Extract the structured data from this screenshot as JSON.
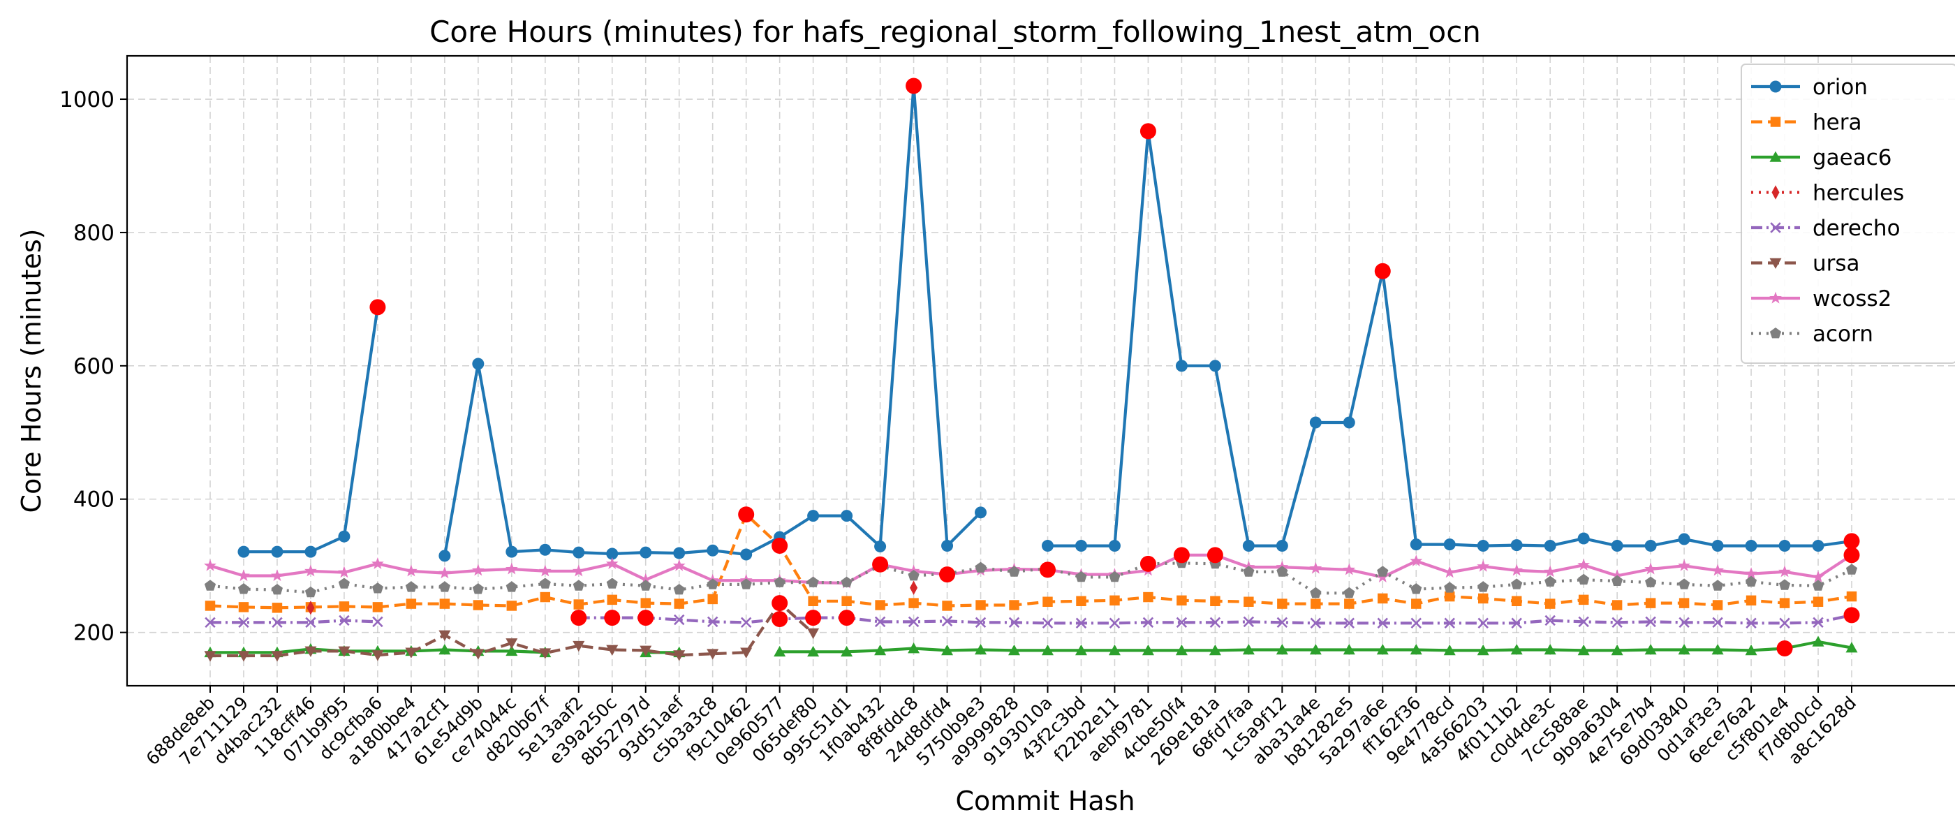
{
  "chart_data": {
    "type": "line",
    "title": "Core Hours (minutes) for hafs_regional_storm_following_1nest_atm_ocn",
    "xlabel": "Commit Hash",
    "ylabel": "Core Hours (minutes)",
    "ylim": [
      120,
      1065
    ],
    "yticks": [
      200,
      400,
      600,
      800,
      1000
    ],
    "grid": true,
    "legend_position": "top-right",
    "highlight_color": "#ff0000",
    "categories": [
      "688de8eb",
      "7e711129",
      "d4bac232",
      "118cff46",
      "071b9f95",
      "dc9cfba6",
      "a180bbe4",
      "417a2cf1",
      "61e54d9b",
      "ce74044c",
      "d820b67f",
      "5e13aaf2",
      "e39a250c",
      "8b52797d",
      "93d51aef",
      "c5b3a3c8",
      "f9c10462",
      "0e960577",
      "065def80",
      "995c51d1",
      "1f0ab432",
      "8f8fddc8",
      "24d8dfd4",
      "5750b9e3",
      "a9999828",
      "9193010a",
      "43f2c3bd",
      "f22b2e11",
      "aebf9781",
      "4cbe50f4",
      "269e181a",
      "68fd7faa",
      "1c5a9f12",
      "aba31a4e",
      "b81282e5",
      "5a297a6e",
      "ff162f36",
      "9e4778cd",
      "4a566203",
      "4f0111b2",
      "c0d4de3c",
      "7cc588ae",
      "9b9a6304",
      "4e75e7b4",
      "69d03840",
      "0d1af3e3",
      "6ece76a2",
      "c5f801e4",
      "f7d8b0cd",
      "a8c1628d"
    ],
    "series": [
      {
        "name": "orion",
        "color": "#1f77b4",
        "marker": "circle",
        "linestyle": "solid",
        "values": [
          null,
          321,
          321,
          321,
          344,
          688,
          null,
          315,
          603,
          321,
          324,
          320,
          318,
          320,
          319,
          323,
          317,
          343,
          375,
          375,
          329,
          1020,
          330,
          380,
          null,
          330,
          330,
          330,
          952,
          600,
          600,
          330,
          330,
          515,
          515,
          742,
          332,
          332,
          330,
          331,
          330,
          341,
          330,
          330,
          340,
          330,
          330,
          330,
          330,
          337
        ],
        "highlight_idx": [
          5,
          21,
          28,
          35,
          49
        ]
      },
      {
        "name": "hera",
        "color": "#ff7f0e",
        "marker": "square",
        "linestyle": "dashed",
        "values": [
          240,
          238,
          237,
          238,
          239,
          238,
          243,
          243,
          241,
          240,
          253,
          242,
          249,
          244,
          243,
          250,
          377,
          330,
          247,
          247,
          241,
          244,
          240,
          241,
          241,
          246,
          247,
          248,
          253,
          248,
          247,
          246,
          243,
          243,
          243,
          251,
          243,
          254,
          251,
          247,
          243,
          249,
          241,
          244,
          244,
          241,
          248,
          244,
          246,
          254
        ],
        "highlight_idx": [
          16,
          17
        ]
      },
      {
        "name": "gaeac6",
        "color": "#2ca02c",
        "marker": "triangle-up",
        "linestyle": "solid",
        "values": [
          170,
          170,
          170,
          175,
          172,
          172,
          172,
          174,
          172,
          172,
          170,
          null,
          null,
          170,
          170,
          null,
          null,
          171,
          171,
          171,
          173,
          176,
          173,
          174,
          173,
          173,
          173,
          173,
          173,
          173,
          173,
          174,
          174,
          174,
          174,
          174,
          174,
          173,
          173,
          174,
          174,
          173,
          173,
          174,
          174,
          174,
          173,
          176,
          186,
          177
        ],
        "highlight_idx": [
          47
        ]
      },
      {
        "name": "hercules",
        "color": "#d62728",
        "marker": "diamond",
        "linestyle": "dotted",
        "values": [
          null,
          null,
          null,
          237,
          null,
          null,
          null,
          null,
          null,
          null,
          null,
          null,
          null,
          null,
          null,
          null,
          null,
          null,
          null,
          null,
          null,
          267,
          null,
          null,
          null,
          null,
          null,
          null,
          null,
          null,
          null,
          null,
          null,
          null,
          null,
          null,
          null,
          null,
          null,
          null,
          null,
          null,
          null,
          null,
          null,
          null,
          null,
          null,
          null,
          null
        ],
        "highlight_idx": []
      },
      {
        "name": "derecho",
        "color": "#9467bd",
        "marker": "x",
        "linestyle": "dashdot",
        "values": [
          215,
          215,
          215,
          215,
          218,
          216,
          null,
          null,
          null,
          null,
          null,
          222,
          222,
          222,
          219,
          216,
          215,
          220,
          222,
          222,
          216,
          216,
          217,
          215,
          215,
          214,
          214,
          214,
          215,
          215,
          215,
          216,
          215,
          214,
          214,
          214,
          214,
          214,
          214,
          214,
          218,
          216,
          215,
          216,
          215,
          215,
          214,
          214,
          215,
          226
        ],
        "highlight_idx": [
          11,
          12,
          13,
          17,
          18,
          19,
          49
        ]
      },
      {
        "name": "ursa",
        "color": "#8c564b",
        "marker": "triangle-down",
        "linestyle": "dashed",
        "values": [
          165,
          165,
          165,
          172,
          172,
          166,
          170,
          196,
          168,
          184,
          169,
          180,
          174,
          173,
          166,
          168,
          170,
          244,
          199,
          null,
          null,
          null,
          null,
          null,
          null,
          null,
          null,
          null,
          null,
          null,
          null,
          null,
          null,
          null,
          null,
          null,
          null,
          null,
          null,
          null,
          null,
          null,
          null,
          null,
          null,
          null,
          null,
          null,
          null,
          null
        ],
        "highlight_idx": [
          17
        ]
      },
      {
        "name": "wcoss2",
        "color": "#e377c2",
        "marker": "star",
        "linestyle": "solid",
        "values": [
          300,
          285,
          285,
          292,
          290,
          303,
          292,
          289,
          293,
          295,
          292,
          292,
          303,
          279,
          300,
          278,
          278,
          278,
          275,
          274,
          302,
          292,
          287,
          293,
          295,
          294,
          287,
          287,
          293,
          316,
          316,
          298,
          298,
          296,
          294,
          283,
          307,
          290,
          299,
          293,
          291,
          301,
          285,
          295,
          300,
          293,
          288,
          291,
          283,
          316
        ],
        "highlight_idx": [
          20,
          22,
          25,
          29,
          30,
          49
        ]
      },
      {
        "name": "acorn",
        "color": "#7f7f7f",
        "marker": "pentagon",
        "linestyle": "dotted",
        "values": [
          270,
          265,
          264,
          260,
          273,
          266,
          268,
          268,
          265,
          268,
          273,
          270,
          273,
          270,
          264,
          272,
          272,
          275,
          275,
          275,
          300,
          285,
          288,
          297,
          291,
          296,
          283,
          283,
          303,
          304,
          303,
          291,
          291,
          259,
          259,
          291,
          265,
          267,
          268,
          272,
          276,
          279,
          277,
          275,
          272,
          270,
          276,
          271,
          270,
          294
        ],
        "highlight_idx": [
          28
        ]
      }
    ]
  }
}
